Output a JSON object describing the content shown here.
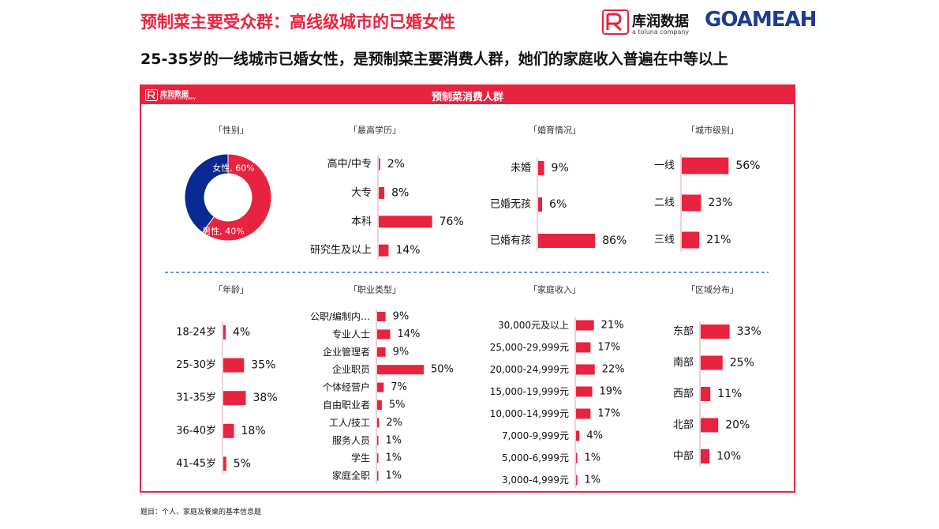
{
  "header": {
    "title": "预制菜主要受众群：高线级城市的已婚女性",
    "subtitle": "25-35岁的一线城市已婚女性，是预制菜主要消费人群，她们的家庭收入普遍在中等以上"
  },
  "logos": {
    "brand_name": "库润数据",
    "brand_tagline": "a toluna company",
    "partner_name": "GOAMEAH"
  },
  "panel": {
    "title": "预制菜消费人群",
    "logo_name": "库润数据",
    "logo_tagline": "a toluna company"
  },
  "footnote": "题目：个人、家庭及餐桌的基本信息题",
  "colors": {
    "accent": "#e8233f",
    "navy": "#0a2893",
    "divider": "#2255cc"
  },
  "chart_data": [
    {
      "id": "gender",
      "type": "pie",
      "title": "「性别」",
      "series": [
        {
          "name": "女性",
          "value": 60,
          "label": "女性, 60%",
          "color": "#e8233f"
        },
        {
          "name": "男性",
          "value": 40,
          "label": "男性, 40%",
          "color": "#0a2893"
        }
      ]
    },
    {
      "id": "education",
      "type": "bar",
      "title": "「最高学历」",
      "categories": [
        "高中/中专",
        "大专",
        "本科",
        "研究生及以上"
      ],
      "values": [
        2,
        8,
        76,
        14
      ]
    },
    {
      "id": "marriage",
      "type": "bar",
      "title": "「婚育情况」",
      "categories": [
        "未婚",
        "已婚无孩",
        "已婚有孩"
      ],
      "values": [
        9,
        6,
        86
      ]
    },
    {
      "id": "city",
      "type": "bar",
      "title": "「城市级别」",
      "categories": [
        "一线",
        "二线",
        "三线"
      ],
      "values": [
        56,
        23,
        21
      ]
    },
    {
      "id": "age",
      "type": "bar",
      "title": "「年龄」",
      "categories": [
        "18-24岁",
        "25-30岁",
        "31-35岁",
        "36-40岁",
        "41-45岁"
      ],
      "values": [
        4,
        35,
        38,
        18,
        5
      ]
    },
    {
      "id": "occupation",
      "type": "bar",
      "title": "「职业类型」",
      "categories": [
        "公职/编制内…",
        "专业人士",
        "企业管理者",
        "企业职员",
        "个体经营户",
        "自由职业者",
        "工人/技工",
        "服务人员",
        "学生",
        "家庭全职"
      ],
      "values": [
        9,
        14,
        9,
        50,
        7,
        5,
        2,
        1,
        1,
        1
      ]
    },
    {
      "id": "income",
      "type": "bar",
      "title": "「家庭收入」",
      "categories": [
        "30,000元及以上",
        "25,000-29,999元",
        "20,000-24,999元",
        "15,000-19,999元",
        "10,000-14,999元",
        "7,000-9,999元",
        "5,000-6,999元",
        "3,000-4,999元"
      ],
      "values": [
        21,
        17,
        22,
        19,
        17,
        4,
        1,
        1
      ]
    },
    {
      "id": "region",
      "type": "bar",
      "title": "「区域分布」",
      "categories": [
        "东部",
        "南部",
        "西部",
        "北部",
        "中部"
      ],
      "values": [
        33,
        25,
        11,
        20,
        10
      ]
    }
  ]
}
